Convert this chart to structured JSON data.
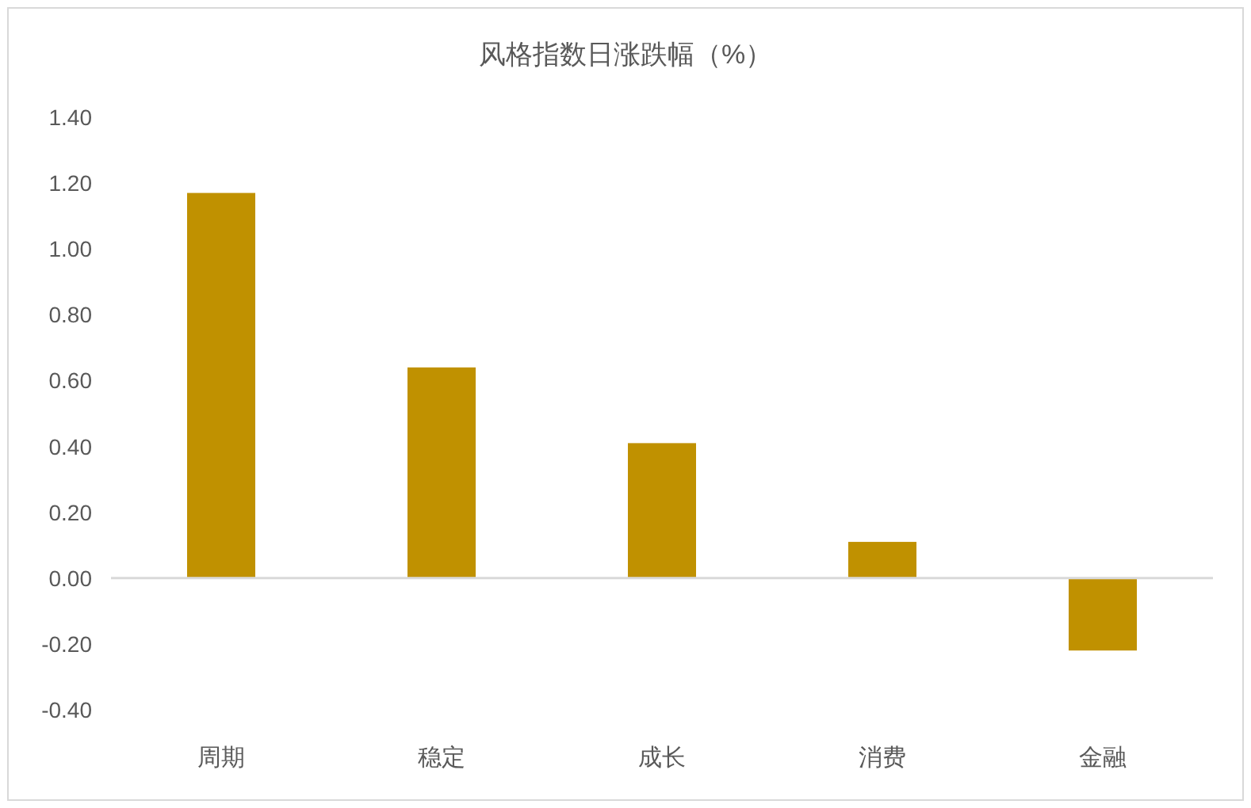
{
  "chart_data": {
    "type": "bar",
    "title": "风格指数日涨跌幅（%）",
    "categories": [
      "周期",
      "稳定",
      "成长",
      "消费",
      "金融"
    ],
    "values": [
      1.17,
      0.64,
      0.41,
      0.11,
      -0.22
    ],
    "color": "#c09100",
    "ylim": [
      -0.4,
      1.4
    ],
    "yticks": [
      {
        "value": -0.4,
        "label": "-0.40"
      },
      {
        "value": -0.2,
        "label": "-0.20"
      },
      {
        "value": 0,
        "label": "0.00"
      },
      {
        "value": 0.2,
        "label": "0.20"
      },
      {
        "value": 0.4,
        "label": "0.40"
      },
      {
        "value": 0.6,
        "label": "0.60"
      },
      {
        "value": 0.8,
        "label": "0.80"
      },
      {
        "value": 1.0,
        "label": "1.00"
      },
      {
        "value": 1.2,
        "label": "1.20"
      },
      {
        "value": 1.4,
        "label": "1.40"
      }
    ]
  }
}
